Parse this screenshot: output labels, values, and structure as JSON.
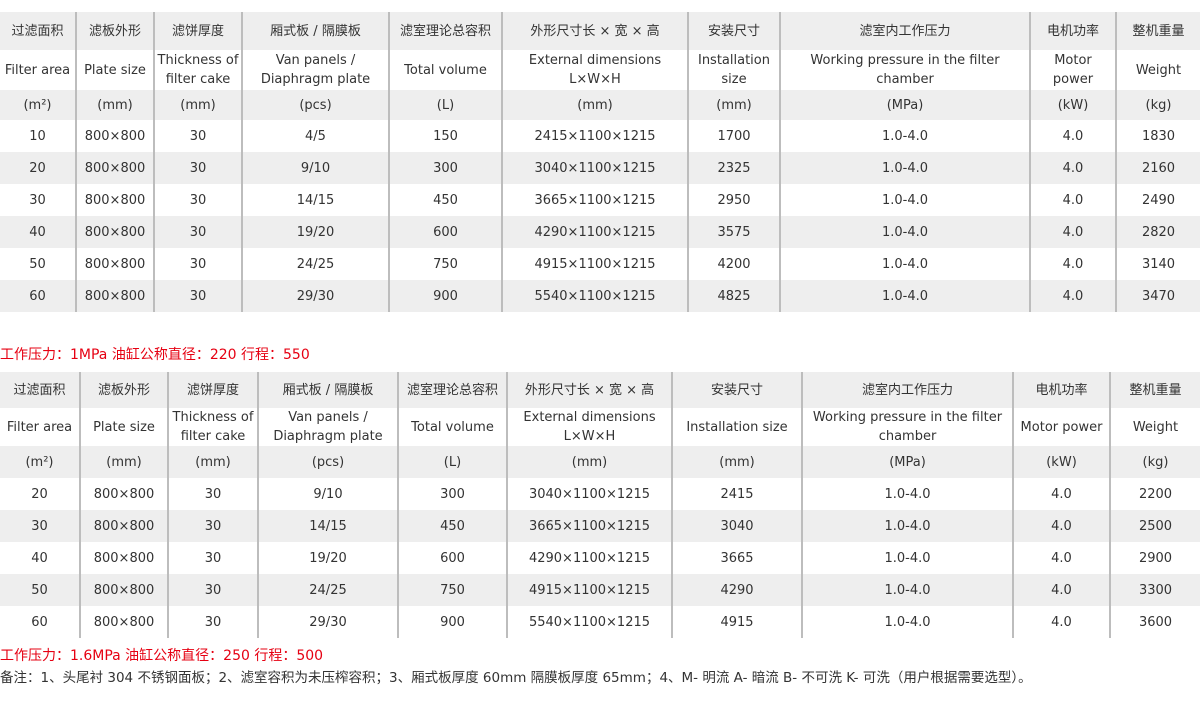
{
  "headers_cn": [
    "过滤面积",
    "滤板外形",
    "滤饼厚度",
    "厢式板 / 隔膜板",
    "滤室理论总容积",
    "外形尺寸长 × 宽 × 高",
    "安装尺寸",
    "滤室内工作压力",
    "电机功率",
    "整机重量"
  ],
  "headers_en_1": [
    "Filter area",
    "Plate size",
    "Thickness of filter cake",
    "Van panels / Diaphragm plate",
    "Total volume",
    "External dimensions L×W×H",
    "Installation size",
    "Working pressure in the filter chamber",
    "Motor power",
    "Weight"
  ],
  "headers_en_2": [
    "Filter area",
    "Plate size",
    "Thickness of filter cake",
    "Van panels / Diaphragm plate",
    "Total volume",
    "External dimensions L×W×H",
    "Installation size",
    "Working pressure in the filter chamber",
    "Motor power",
    "Weight"
  ],
  "units": [
    "(m²)",
    "(mm)",
    "(mm)",
    "(pcs)",
    "(L)",
    "(mm)",
    "(mm)",
    "(MPa)",
    "(kW)",
    "(kg)"
  ],
  "table1_rows": [
    [
      "10",
      "800×800",
      "30",
      "4/5",
      "150",
      "2415×1100×1215",
      "1700",
      "1.0-4.0",
      "4.0",
      "1830"
    ],
    [
      "20",
      "800×800",
      "30",
      "9/10",
      "300",
      "3040×1100×1215",
      "2325",
      "1.0-4.0",
      "4.0",
      "2160"
    ],
    [
      "30",
      "800×800",
      "30",
      "14/15",
      "450",
      "3665×1100×1215",
      "2950",
      "1.0-4.0",
      "4.0",
      "2490"
    ],
    [
      "40",
      "800×800",
      "30",
      "19/20",
      "600",
      "4290×1100×1215",
      "3575",
      "1.0-4.0",
      "4.0",
      "2820"
    ],
    [
      "50",
      "800×800",
      "30",
      "24/25",
      "750",
      "4915×1100×1215",
      "4200",
      "1.0-4.0",
      "4.0",
      "3140"
    ],
    [
      "60",
      "800×800",
      "30",
      "29/30",
      "900",
      "5540×1100×1215",
      "4825",
      "1.0-4.0",
      "4.0",
      "3470"
    ]
  ],
  "table1_caption": "工作压力：1MPa 油缸公称直径：220 行程：550",
  "table2_rows": [
    [
      "20",
      "800×800",
      "30",
      "9/10",
      "300",
      "3040×1100×1215",
      "2415",
      "1.0-4.0",
      "4.0",
      "2200"
    ],
    [
      "30",
      "800×800",
      "30",
      "14/15",
      "450",
      "3665×1100×1215",
      "3040",
      "1.0-4.0",
      "4.0",
      "2500"
    ],
    [
      "40",
      "800×800",
      "30",
      "19/20",
      "600",
      "4290×1100×1215",
      "3665",
      "1.0-4.0",
      "4.0",
      "2900"
    ],
    [
      "50",
      "800×800",
      "30",
      "24/25",
      "750",
      "4915×1100×1215",
      "4290",
      "1.0-4.0",
      "4.0",
      "3300"
    ],
    [
      "60",
      "800×800",
      "30",
      "29/30",
      "900",
      "5540×1100×1215",
      "4915",
      "1.0-4.0",
      "4.0",
      "3600"
    ]
  ],
  "table2_caption": "工作压力：1.6MPa 油缸公称直径：250 行程：500",
  "note": "备注：1、头尾衬 304 不锈钢面板；2、滤室容积为未压榨容积；3、厢式板厚度 60mm 隔膜板厚度 65mm；4、M- 明流 A- 暗流 B- 不可洗 K- 可洗（用户根据需要选型）。",
  "colors": {
    "caption": "#e60012",
    "band": "#eeeeee"
  }
}
